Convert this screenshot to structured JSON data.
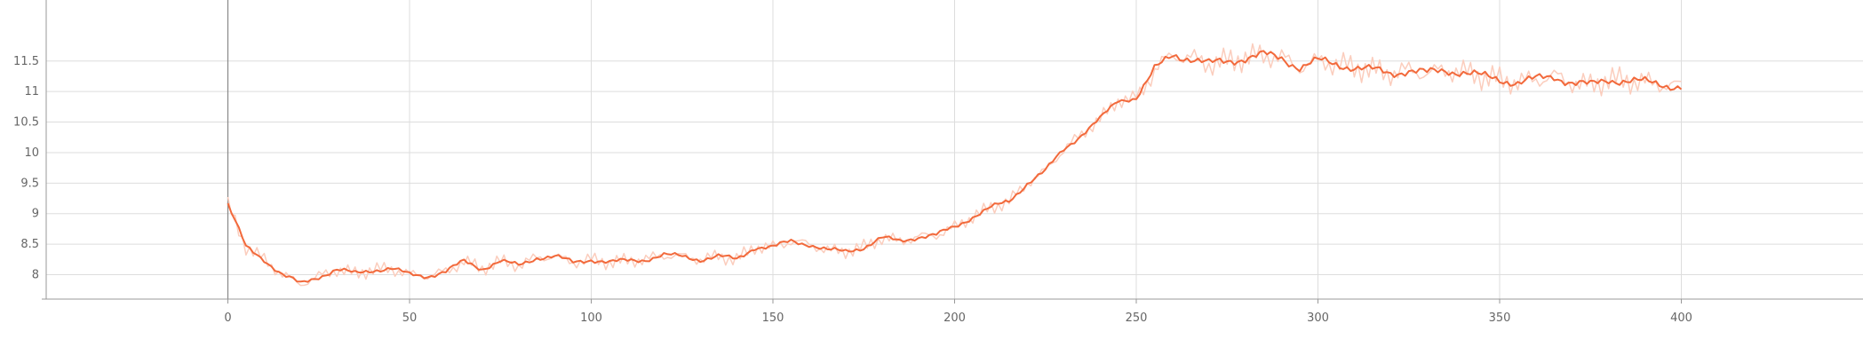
{
  "chart_data": {
    "type": "line",
    "title": "",
    "xlabel": "",
    "ylabel": "",
    "xlim": [
      -50,
      450
    ],
    "ylim": [
      7.6,
      12.5
    ],
    "grid": true,
    "x_ticks": [
      0,
      50,
      100,
      150,
      200,
      250,
      300,
      350,
      400
    ],
    "y_ticks": [
      8,
      8.5,
      9,
      9.5,
      10,
      10.5,
      11,
      11.5
    ],
    "y_tick_labels": [
      "8",
      "8.5",
      "9",
      "9.5",
      "10",
      "10.5",
      "11",
      "11.5"
    ],
    "colors": {
      "smoothed": "#f2693b",
      "raw": "#fbcdbd",
      "grid": "#dddddd",
      "axis": "#999999",
      "zero_line": "#888888"
    },
    "series": [
      {
        "x": [
          0,
          5,
          10,
          15,
          20,
          25,
          30,
          35,
          40,
          45,
          50,
          55,
          60,
          65,
          70,
          75,
          80,
          85,
          90,
          95,
          100,
          105,
          110,
          115,
          120,
          125,
          130,
          135,
          140,
          145,
          150,
          155,
          160,
          165,
          170,
          175,
          180,
          185,
          190,
          195,
          200,
          205,
          210,
          215,
          220,
          225,
          230,
          235,
          240,
          245,
          250,
          255,
          260,
          265,
          270,
          275,
          280,
          285,
          290,
          295,
          300,
          305,
          310,
          315,
          320,
          325,
          330,
          335,
          340,
          345,
          350,
          355,
          360,
          365,
          370,
          375,
          380,
          385,
          390,
          395,
          400
        ],
        "values": [
          9.15,
          8.45,
          8.25,
          8.0,
          7.85,
          7.97,
          8.08,
          8.02,
          8.08,
          8.1,
          8.0,
          7.98,
          8.05,
          8.22,
          8.1,
          8.22,
          8.15,
          8.28,
          8.3,
          8.2,
          8.25,
          8.2,
          8.23,
          8.25,
          8.32,
          8.3,
          8.25,
          8.3,
          8.25,
          8.45,
          8.45,
          8.55,
          8.5,
          8.4,
          8.38,
          8.45,
          8.6,
          8.55,
          8.62,
          8.65,
          8.78,
          8.95,
          9.1,
          9.2,
          9.5,
          9.7,
          10.05,
          10.3,
          10.55,
          10.85,
          10.9,
          11.35,
          11.6,
          11.55,
          11.45,
          11.5,
          11.55,
          11.6,
          11.55,
          11.4,
          11.5,
          11.45,
          11.4,
          11.35,
          11.3,
          11.35,
          11.3,
          11.35,
          11.32,
          11.25,
          11.2,
          11.15,
          11.2,
          11.25,
          11.15,
          11.1,
          11.2,
          11.18,
          11.15,
          11.12,
          11.08
        ]
      }
    ]
  }
}
